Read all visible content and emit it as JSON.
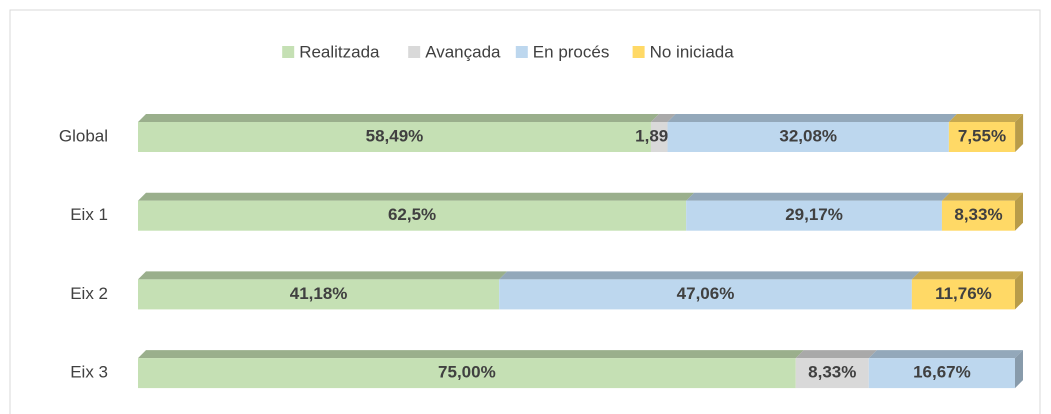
{
  "chart_data": {
    "type": "stacked-bar-horizontal",
    "categories": [
      "Global",
      "Eix 1",
      "Eix 2",
      "Eix 3"
    ],
    "xlim": [
      0,
      100
    ],
    "legend": "top",
    "series": [
      {
        "name": "Realitzada",
        "color": "#c5e0b4",
        "values": [
          58.49,
          62.5,
          41.18,
          75.0
        ],
        "value_labels": [
          "58,49%",
          "62,5%",
          "41,18%",
          "75,00%"
        ]
      },
      {
        "name": "Avançada",
        "color": "#d9d9d9",
        "values": [
          1.89,
          null,
          null,
          8.33
        ],
        "value_labels": [
          "1,89%",
          null,
          null,
          "8,33%"
        ]
      },
      {
        "name": "En procés",
        "color": "#bdd7ee",
        "values": [
          32.08,
          29.17,
          47.06,
          16.67
        ],
        "value_labels": [
          "32,08%",
          "29,17%",
          "47,06%",
          "16,67%"
        ]
      },
      {
        "name": "No iniciada",
        "color": "#ffd966",
        "values": [
          7.55,
          8.33,
          11.76,
          null
        ],
        "value_labels": [
          "7,55%",
          "8,33%",
          "11,76%",
          null
        ]
      }
    ]
  }
}
